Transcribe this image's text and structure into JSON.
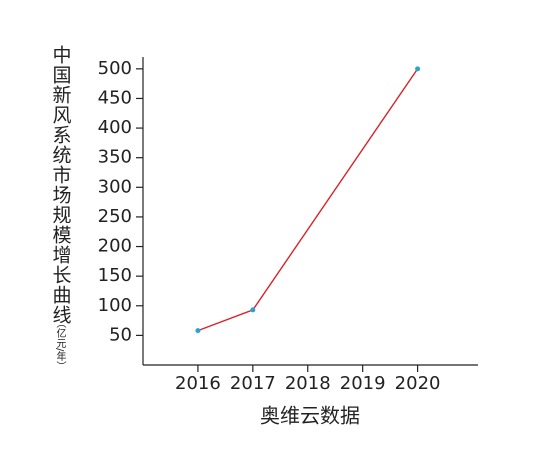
{
  "chart_data": {
    "type": "line",
    "y_label": "中国新风系统市场规模增长曲线",
    "y_unit": "（亿元/年）",
    "x_label": "奥维云数据",
    "x": [
      2016,
      2017,
      2020
    ],
    "values": [
      58,
      93,
      500
    ],
    "color": "#d8232a",
    "marker_color": "#2ea3c9",
    "xlim": [
      2015,
      2021.1
    ],
    "xticks": [
      2016,
      2017,
      2018,
      2019,
      2020
    ],
    "ylim": [
      0,
      520
    ],
    "yticks": [
      50,
      100,
      150,
      200,
      250,
      300,
      350,
      400,
      450,
      500
    ]
  }
}
